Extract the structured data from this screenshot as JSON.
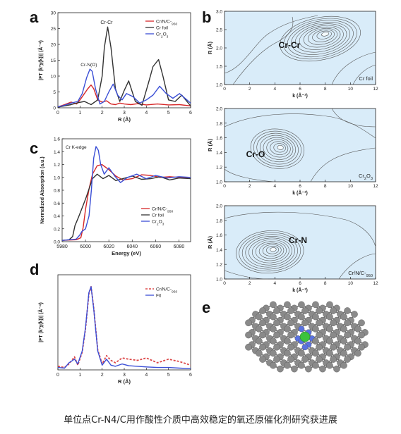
{
  "caption": {
    "text": "单位点Cr-N4/C用作酸性介质中高效稳定的氧还原催化剂研究获进展"
  },
  "colors": {
    "red": "#d62728",
    "black": "#333333",
    "blue": "#3b4fd6",
    "contourFill": "#d9ecf9",
    "contourLine": "#555555",
    "carbon": "#8a8a8a",
    "nitrogen": "#5a72e0",
    "chromium": "#3cc33c"
  },
  "chart_data": [
    {
      "id": "a",
      "panel_letter": "a",
      "type": "line",
      "xlabel": "R (Å)",
      "ylabel": "|FT (k³χ(k))| (Å⁻⁴)",
      "xlim": [
        0,
        6
      ],
      "ylim": [
        0,
        30
      ],
      "xticks": [
        "0",
        "1",
        "2",
        "3",
        "4",
        "5",
        "6"
      ],
      "yticks": [
        "0",
        "5",
        "10",
        "15",
        "20",
        "25",
        "30"
      ],
      "annotations": [
        "Cr-Cr",
        "Cr-N(O)"
      ],
      "legend": [
        "Cr/N/C-950",
        "Cr foil",
        "Cr2O3"
      ],
      "legend_position": "top-right",
      "series": [
        {
          "name": "Cr/N/C-950",
          "color": "red",
          "x": [
            0,
            0.3,
            0.6,
            0.85,
            1.0,
            1.2,
            1.35,
            1.5,
            1.62,
            1.8,
            2.0,
            2.2,
            2.4,
            2.6,
            2.8,
            3.0,
            3.3,
            3.6,
            4.0,
            4.5,
            5.0,
            5.5,
            6.0
          ],
          "y": [
            0.3,
            1.0,
            1.8,
            1.2,
            2.5,
            4.5,
            6.0,
            7.2,
            6.0,
            2.5,
            1.8,
            2.2,
            1.2,
            1.0,
            1.5,
            1.2,
            1.0,
            1.3,
            0.9,
            1.2,
            0.9,
            1.0,
            0.6
          ]
        },
        {
          "name": "Cr foil",
          "color": "black",
          "x": [
            0,
            0.3,
            0.6,
            0.9,
            1.2,
            1.5,
            1.8,
            2.0,
            2.1,
            2.25,
            2.4,
            2.6,
            2.8,
            3.0,
            3.2,
            3.5,
            3.8,
            4.1,
            4.3,
            4.55,
            4.75,
            5.0,
            5.3,
            5.6,
            6.0
          ],
          "y": [
            0.2,
            0.6,
            1.0,
            1.6,
            2.0,
            1.0,
            2.5,
            10.0,
            19.0,
            25.5,
            19.0,
            6.0,
            2.0,
            5.5,
            8.5,
            2.0,
            0.8,
            8.0,
            13.0,
            15.2,
            10.0,
            2.5,
            2.0,
            4.0,
            0.6
          ]
        },
        {
          "name": "Cr2O3",
          "color": "blue",
          "x": [
            0,
            0.3,
            0.6,
            0.9,
            1.1,
            1.3,
            1.45,
            1.55,
            1.7,
            1.9,
            2.1,
            2.3,
            2.5,
            2.7,
            2.9,
            3.1,
            3.4,
            3.7,
            4.0,
            4.3,
            4.6,
            4.9,
            5.2,
            5.5,
            6.0
          ],
          "y": [
            0.3,
            0.8,
            1.5,
            2.0,
            4.5,
            9.5,
            12.2,
            11.5,
            6.0,
            1.2,
            2.0,
            5.0,
            7.5,
            4.0,
            2.5,
            4.5,
            3.5,
            1.5,
            2.5,
            4.0,
            6.8,
            4.5,
            3.0,
            4.5,
            1.5
          ]
        }
      ]
    },
    {
      "id": "b1",
      "panel_letter": "b",
      "type": "heatmap",
      "xlabel": "k (Å⁻¹)",
      "ylabel": "R (Å)",
      "xlim": [
        0,
        12
      ],
      "ylim": [
        1.0,
        3.0
      ],
      "xticks": [
        "0",
        "2",
        "4",
        "6",
        "8",
        "10",
        "12"
      ],
      "yticks": [
        "1.0",
        "1.5",
        "2.0",
        "2.5",
        "3.0"
      ],
      "peak_label": "Cr-Cr",
      "sample": "Cr foil",
      "peak": {
        "k": 7.6,
        "R": 2.25
      }
    },
    {
      "id": "b2",
      "type": "heatmap",
      "xlabel": "k (Å⁻¹)",
      "ylabel": "R (Å)",
      "xlim": [
        0,
        12
      ],
      "ylim": [
        1.0,
        2.0
      ],
      "xticks": [
        "0",
        "2",
        "4",
        "6",
        "8",
        "10",
        "12"
      ],
      "yticks": [
        "1.0",
        "1.2",
        "1.4",
        "1.6",
        "1.8",
        "2.0"
      ],
      "peak_label": "Cr-O",
      "sample": "Cr2O3",
      "peak": {
        "k": 4.2,
        "R": 1.45
      }
    },
    {
      "id": "b3",
      "type": "heatmap",
      "xlabel": "k (Å⁻¹)",
      "ylabel": "R (Å)",
      "xlim": [
        0,
        12
      ],
      "ylim": [
        1.0,
        2.0
      ],
      "xticks": [
        "0",
        "2",
        "4",
        "6",
        "8",
        "10",
        "12"
      ],
      "yticks": [
        "1.0",
        "1.2",
        "1.4",
        "1.6",
        "1.8",
        "2.0"
      ],
      "peak_label": "Cr-N",
      "sample": "Cr/N/C-950",
      "peak": {
        "k": 3.6,
        "R": 1.37
      }
    },
    {
      "id": "c",
      "panel_letter": "c",
      "type": "line",
      "xlabel": "Energy (eV)",
      "ylabel": "Normalized Absorption (a.u.)",
      "xlim": [
        5980,
        6090
      ],
      "ylim": [
        0,
        1.6
      ],
      "xticks": [
        "5980",
        "6000",
        "6020",
        "6040",
        "6060",
        "6080"
      ],
      "yticks": [
        "0.0",
        "0.2",
        "0.4",
        "0.6",
        "0.8",
        "1.0",
        "1.2",
        "1.4",
        "1.6"
      ],
      "annotation": "Cr K-edge",
      "legend": [
        "Cr/N/C-950",
        "Cr foil",
        "Cr2O3"
      ],
      "legend_position": "lower-right",
      "series": [
        {
          "name": "Cr/N/C-950",
          "color": "red",
          "x": [
            5980,
            5992,
            5996,
            5998,
            6000,
            6003,
            6006,
            6010,
            6014,
            6020,
            6026,
            6032,
            6040,
            6048,
            6056,
            6064,
            6072,
            6080,
            6090
          ],
          "y": [
            0.02,
            0.03,
            0.06,
            0.22,
            0.5,
            0.82,
            1.05,
            1.18,
            1.2,
            1.12,
            1.02,
            0.96,
            0.98,
            1.04,
            1.03,
            1.0,
            1.01,
            1.0,
            1.0
          ]
        },
        {
          "name": "Cr foil",
          "color": "black",
          "x": [
            5980,
            5986,
            5989,
            5991,
            5994,
            5997,
            6000,
            6003,
            6006,
            6010,
            6015,
            6020,
            6026,
            6032,
            6040,
            6048,
            6056,
            6064,
            6072,
            6080,
            6090
          ],
          "y": [
            0.02,
            0.03,
            0.08,
            0.25,
            0.38,
            0.52,
            0.66,
            0.82,
            0.98,
            1.05,
            0.98,
            1.03,
            0.95,
            0.98,
            1.02,
            0.97,
            0.98,
            1.01,
            0.96,
            0.99,
            0.98
          ]
        },
        {
          "name": "Cr2O3",
          "color": "blue",
          "x": [
            5980,
            5992,
            5995,
            5997,
            6000,
            6003,
            6005,
            6007,
            6009,
            6011,
            6013,
            6016,
            6020,
            6025,
            6030,
            6036,
            6044,
            6052,
            6060,
            6070,
            6080,
            6090
          ],
          "y": [
            0.02,
            0.04,
            0.1,
            0.16,
            0.2,
            0.4,
            0.8,
            1.3,
            1.48,
            1.42,
            1.2,
            1.05,
            1.15,
            1.02,
            0.92,
            1.0,
            1.05,
            0.98,
            1.03,
            0.99,
            1.01,
            1.0
          ]
        }
      ]
    },
    {
      "id": "d",
      "panel_letter": "d",
      "type": "line",
      "xlabel": "R (Å)",
      "ylabel": "|FT (k³χ(k))| (Å⁻⁴)",
      "xlim": [
        0,
        6
      ],
      "ylim": [
        0,
        8
      ],
      "xticks": [
        "0",
        "1",
        "2",
        "3",
        "4",
        "5",
        "6"
      ],
      "yticks": [],
      "legend": [
        "Cr/N/C-950",
        "Fit"
      ],
      "legend_position": "top-right",
      "series": [
        {
          "name": "Cr/N/C-950",
          "color": "red",
          "dashed": true,
          "x": [
            0,
            0.3,
            0.5,
            0.75,
            0.9,
            1.1,
            1.25,
            1.4,
            1.5,
            1.62,
            1.8,
            2.0,
            2.2,
            2.4,
            2.6,
            2.9,
            3.2,
            3.6,
            4.0,
            4.5,
            5.0,
            5.5,
            6.0
          ],
          "y": [
            0.3,
            0.2,
            0.5,
            1.1,
            0.4,
            1.5,
            3.5,
            6.4,
            7.0,
            5.2,
            1.7,
            0.5,
            1.2,
            0.8,
            0.6,
            1.0,
            0.9,
            0.8,
            1.0,
            0.6,
            0.9,
            0.7,
            0.4
          ]
        },
        {
          "name": "Fit",
          "color": "blue",
          "x": [
            0,
            0.3,
            0.5,
            0.75,
            0.9,
            1.1,
            1.25,
            1.4,
            1.5,
            1.62,
            1.8,
            2.0,
            2.2,
            2.4,
            2.6,
            2.9,
            3.2,
            3.6,
            4.0,
            4.5,
            5.0,
            5.5,
            6.0
          ],
          "y": [
            0.2,
            0.15,
            0.6,
            0.9,
            0.5,
            1.6,
            3.6,
            6.5,
            7.0,
            5.1,
            1.6,
            0.4,
            0.9,
            0.4,
            0.3,
            0.5,
            0.35,
            0.3,
            0.25,
            0.2,
            0.2,
            0.15,
            0.1
          ]
        }
      ]
    },
    {
      "id": "e",
      "panel_letter": "e",
      "type": "diagram",
      "legend": []
    }
  ]
}
